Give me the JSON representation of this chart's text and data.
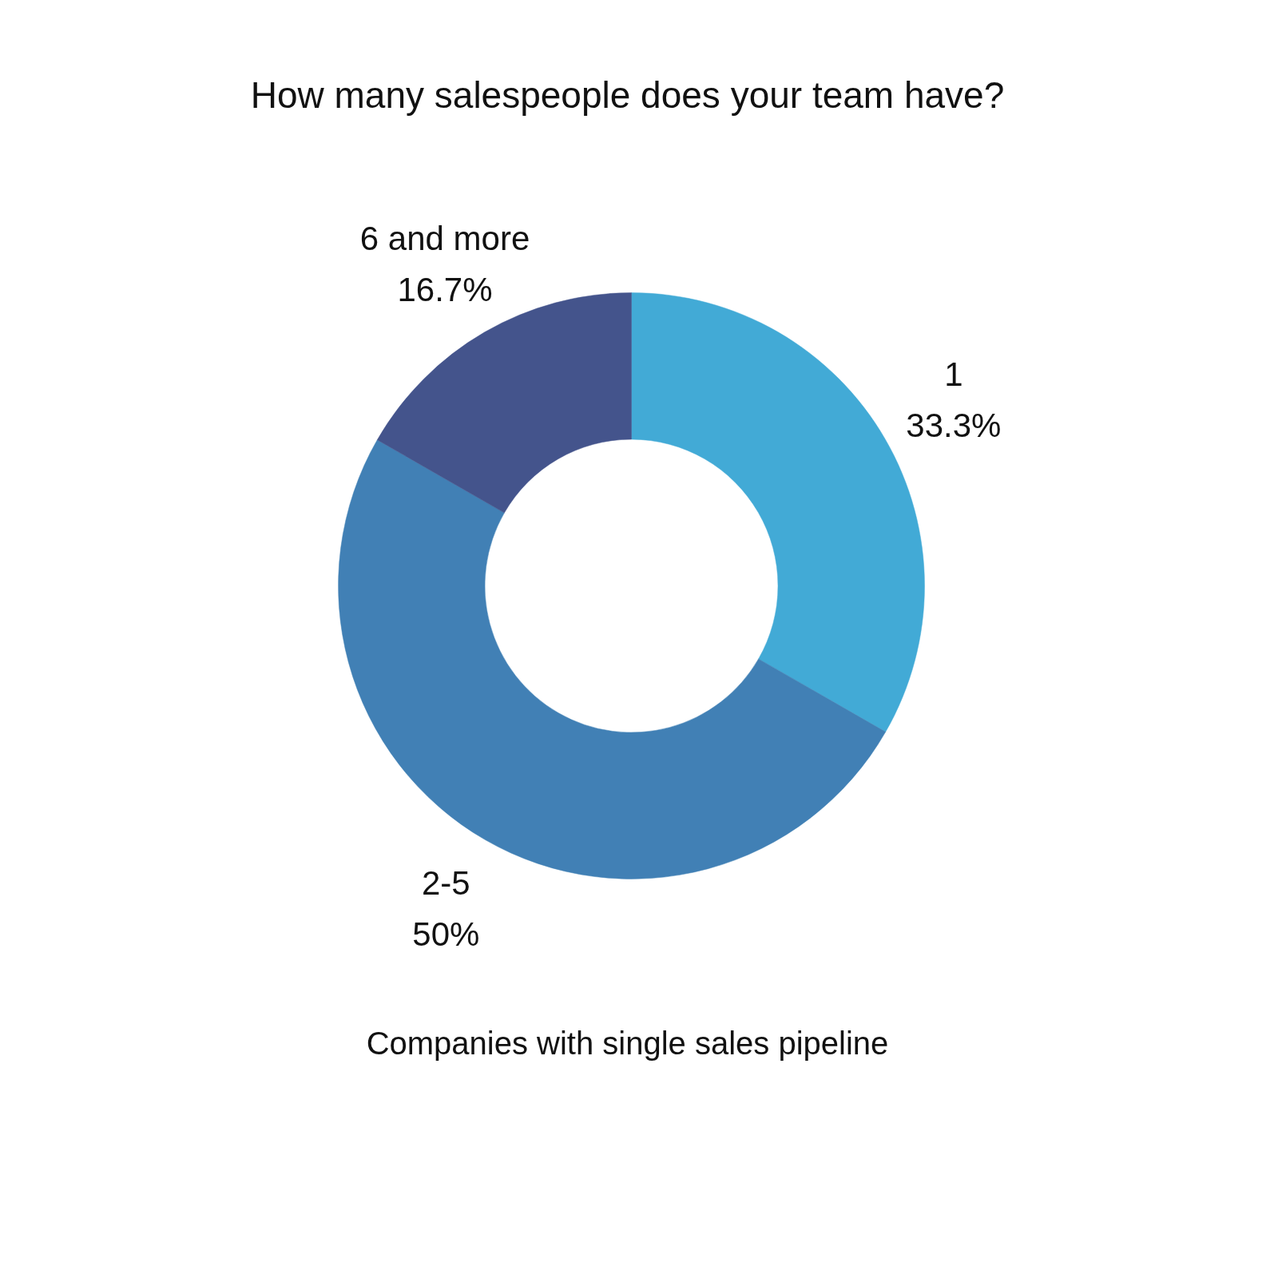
{
  "chart_data": {
    "type": "donut",
    "title": "How many salespeople does your team have?",
    "categories": [
      "1",
      "2-5",
      "6 and more"
    ],
    "values": [
      33.3,
      50,
      16.7
    ],
    "value_labels": [
      "33.3%",
      "50%",
      "16.7%"
    ],
    "colors": [
      "#42aad6",
      "#4180b5",
      "#44548c"
    ],
    "annotations": [
      "Companies with single sales pipeline"
    ]
  }
}
